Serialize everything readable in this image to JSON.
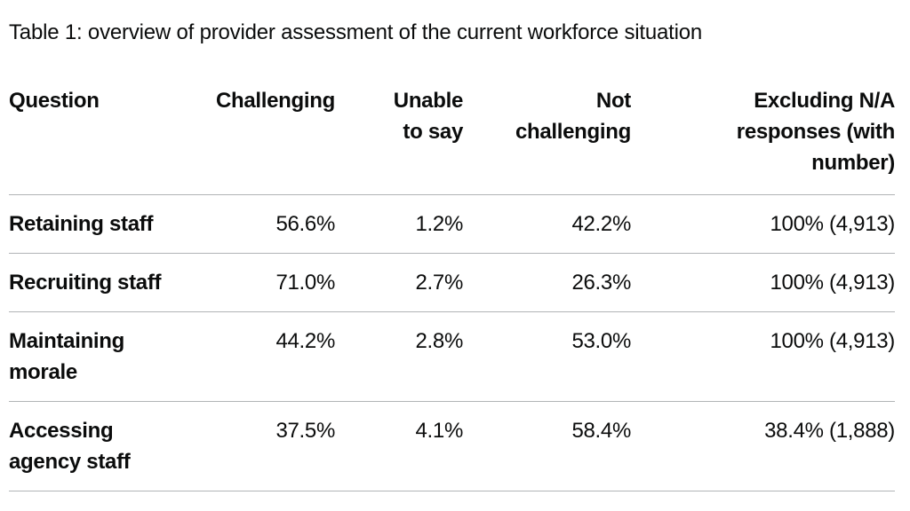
{
  "caption": "Table 1: overview of provider assessment of the current workforce situation",
  "table": {
    "headers": {
      "question": "Question",
      "challenging": "Challenging",
      "unable_to_say": "Unable to say",
      "not_challenging": "Not challenging",
      "excluding_na": "Excluding N/A responses (with number)"
    },
    "rows": [
      {
        "question": "Retaining staff",
        "challenging": "56.6%",
        "unable_to_say": "1.2%",
        "not_challenging": "42.2%",
        "excluding_na": "100% (4,913)"
      },
      {
        "question": "Recruiting staff",
        "challenging": "71.0%",
        "unable_to_say": "2.7%",
        "not_challenging": "26.3%",
        "excluding_na": "100% (4,913)"
      },
      {
        "question": "Maintaining morale",
        "challenging": "44.2%",
        "unable_to_say": "2.8%",
        "not_challenging": "53.0%",
        "excluding_na": "100% (4,913)"
      },
      {
        "question": "Accessing agency staff",
        "challenging": "37.5%",
        "unable_to_say": "4.1%",
        "not_challenging": "58.4%",
        "excluding_na": "38.4% (1,888)"
      }
    ]
  }
}
